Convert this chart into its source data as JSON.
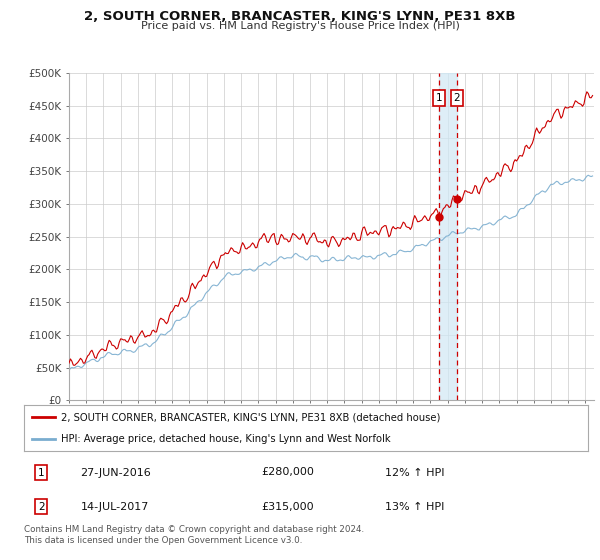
{
  "title_line1": "2, SOUTH CORNER, BRANCASTER, KING'S LYNN, PE31 8XB",
  "title_line2": "Price paid vs. HM Land Registry's House Price Index (HPI)",
  "legend_label1": "2, SOUTH CORNER, BRANCASTER, KING'S LYNN, PE31 8XB (detached house)",
  "legend_label2": "HPI: Average price, detached house, King's Lynn and West Norfolk",
  "transaction1_date": "27-JUN-2016",
  "transaction1_price": "£280,000",
  "transaction1_hpi": "12% ↑ HPI",
  "transaction2_date": "14-JUL-2017",
  "transaction2_price": "£315,000",
  "transaction2_hpi": "13% ↑ HPI",
  "footer": "Contains HM Land Registry data © Crown copyright and database right 2024.\nThis data is licensed under the Open Government Licence v3.0.",
  "ylabel_ticks": [
    "£0",
    "£50K",
    "£100K",
    "£150K",
    "£200K",
    "£250K",
    "£300K",
    "£350K",
    "£400K",
    "£450K",
    "£500K"
  ],
  "ytick_values": [
    0,
    50000,
    100000,
    150000,
    200000,
    250000,
    300000,
    350000,
    400000,
    450000,
    500000
  ],
  "ylim": [
    0,
    500000
  ],
  "xlim_start": 1995.0,
  "xlim_end": 2025.5,
  "transaction1_x": 2016.49,
  "transaction1_y": 280000,
  "transaction2_x": 2017.54,
  "transaction2_y": 315000,
  "line1_color": "#cc0000",
  "line2_color": "#7aadcf",
  "shade_color": "#d0e8f5",
  "background_color": "#ffffff",
  "grid_color": "#cccccc",
  "marker_box_color": "#cc0000"
}
